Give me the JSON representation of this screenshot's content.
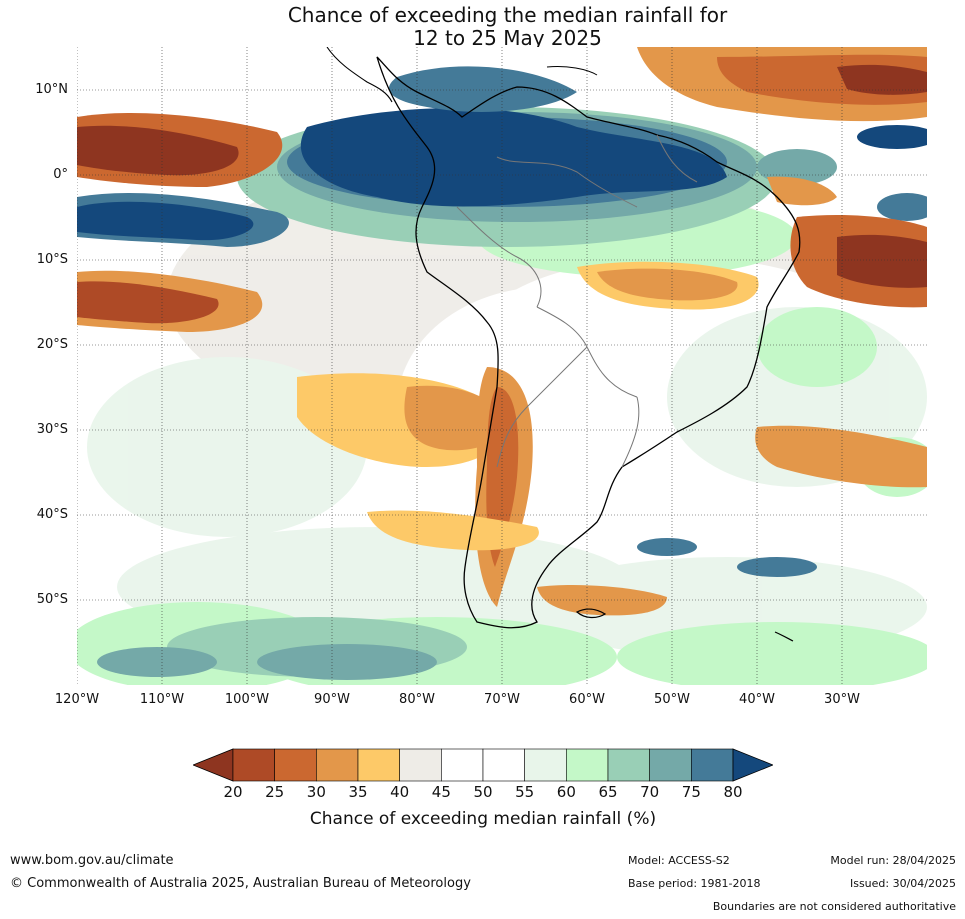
{
  "title": {
    "line1": "Chance of exceeding the median rainfall for",
    "line2": "12 to 25 May 2025"
  },
  "map": {
    "lat_ticks": [
      "10°N",
      "0°",
      "10°S",
      "20°S",
      "30°S",
      "40°S",
      "50°S"
    ],
    "lon_ticks": [
      "120°W",
      "110°W",
      "100°W",
      "90°W",
      "80°W",
      "70°W",
      "60°W",
      "50°W",
      "40°W",
      "30°W"
    ]
  },
  "colorbar": {
    "ticks": [
      "20",
      "25",
      "30",
      "35",
      "40",
      "45",
      "50",
      "55",
      "60",
      "65",
      "70",
      "75",
      "80"
    ],
    "colors": [
      "#8e3520",
      "#ae4a26",
      "#cb6830",
      "#e3974a",
      "#fdc968",
      "#eeece7",
      "#ffffff",
      "#ffffff",
      "#e8f5ea",
      "#c4f8c8",
      "#99cfb6",
      "#74a9a8",
      "#447a98",
      "#14487c"
    ],
    "label": "Chance of exceeding median rainfall (%)"
  },
  "footer": {
    "website": "www.bom.gov.au/climate",
    "copyright": "© Commonwealth of Australia 2025, Australian Bureau of Meteorology",
    "model": "Model: ACCESS-S2",
    "base_period": "Base period: 1981-2018",
    "model_run": "Model run: 28/04/2025",
    "issued": "Issued: 30/04/2025",
    "disclaimer": "Boundaries are not considered authoritative"
  }
}
